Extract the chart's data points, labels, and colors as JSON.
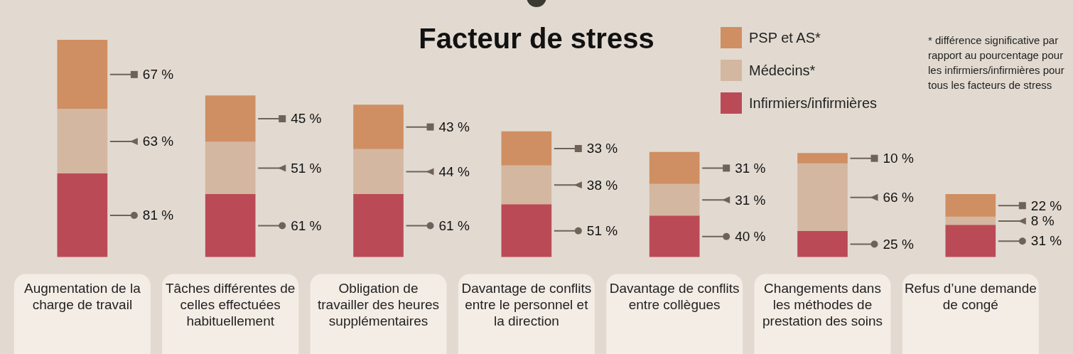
{
  "chart_data": {
    "type": "bar",
    "stacked": true,
    "title": "Facteur de stress",
    "annotations": [
      "* différence significative par rapport au pourcentage pour les infirmiers/infirmières pour tous les facteurs de stress"
    ],
    "categories": [
      "Augmentation de la charge de travail",
      "Tâches différentes de celles effectuées habituellement",
      "Obligation de travailler des heures supplémentaires",
      "Davantage de conflits entre le personnel et la direction",
      "Davantage de conflits entre collègues",
      "Changements dans les méthodes de prestation des soins",
      "Refus d’une demande de congé"
    ],
    "series": [
      {
        "name": "Infirmiers/infirmières",
        "color": "#bb4a57",
        "marker": "circle",
        "values": [
          81,
          61,
          61,
          51,
          40,
          25,
          31
        ],
        "value_labels": [
          "81 %",
          "61 %",
          "61 %",
          "51 %",
          "40 %",
          "25 %",
          "31 %"
        ]
      },
      {
        "name": "Médecins*",
        "color": "#d4b7a0",
        "marker": "triangle",
        "values": [
          63,
          51,
          44,
          38,
          31,
          66,
          8
        ],
        "value_labels": [
          "63 %",
          "51 %",
          "44 %",
          "38 %",
          "31 %",
          "66 %",
          "8 %"
        ]
      },
      {
        "name": "PSP et AS*",
        "color": "#cf8f62",
        "marker": "square",
        "values": [
          67,
          45,
          43,
          33,
          31,
          10,
          22
        ],
        "value_labels": [
          "67 %",
          "45 %",
          "43 %",
          "33 %",
          "31 %",
          "10 %",
          "22 %"
        ]
      }
    ],
    "tick_labels": "x",
    "grid": false,
    "legend": "top right"
  }
}
